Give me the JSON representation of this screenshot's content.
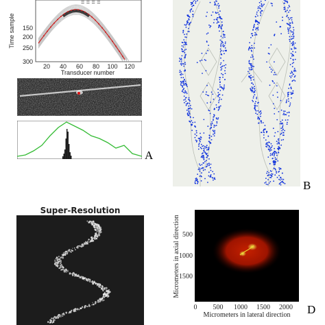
{
  "panel_a": {
    "letter": "A",
    "plot": {
      "ylabel": "Time sample",
      "xlabel": "Transducer number",
      "xticks": [
        "20",
        "40",
        "60",
        "80",
        "100",
        "120"
      ],
      "yticks": [
        "150",
        "200",
        "250",
        "300"
      ],
      "inset_text": "= = = ="
    }
  },
  "panel_b": {
    "letter": "B"
  },
  "panel_c": {
    "title": "Super-Resolution"
  },
  "panel_d": {
    "letter": "D",
    "ylabel": "Micrometers in axial direction",
    "xlabel": "Micrometers in lateral direction",
    "xticks": [
      "0",
      "500",
      "1000",
      "1500",
      "2000"
    ],
    "yticks": [
      "500",
      "1000",
      "1500"
    ]
  },
  "colors": {
    "panel_b_background": "#eef0ea",
    "blue_dots": "#1133dd",
    "hyperbola": "#cc2222",
    "profile_green": "#33bb33",
    "heat_red": "#aa1500",
    "heat_yellow": "#e8e030"
  }
}
